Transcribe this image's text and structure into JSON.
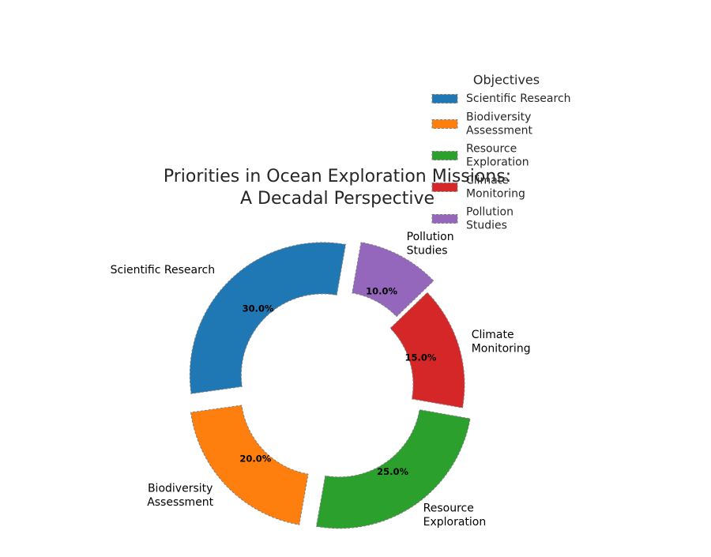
{
  "chart_data": {
    "type": "pie",
    "style": "donut",
    "title": "Priorities in Ocean Exploration Missions:\nA Decadal Perspective",
    "categories": [
      "Scientific Research",
      "Biodiversity Assessment",
      "Resource Exploration",
      "Climate Monitoring",
      "Pollution Studies"
    ],
    "slice_labels": [
      "Scientific Research",
      "Biodiversity\nAssessment",
      "Resource\nExploration",
      "Climate\nMonitoring",
      "Pollution\nStudies"
    ],
    "values": [
      30,
      20,
      25,
      15,
      10
    ],
    "percent_labels": [
      "30.0%",
      "20.0%",
      "25.0%",
      "15.0%",
      "10.0%"
    ],
    "colors": [
      "#1f77b4",
      "#ff7f0e",
      "#2ca02c",
      "#d62728",
      "#9467bd"
    ],
    "exploded": [
      true,
      true,
      true,
      false,
      true
    ],
    "edge_color": "#808080",
    "edge_style": "dashed",
    "start_angle_deg": 80,
    "legend": {
      "title": "Objectives",
      "placement": "top-right",
      "entries": [
        "Scientific Research",
        "Biodiversity\nAssessment",
        "Resource\nExploration",
        "Climate\nMonitoring",
        "Pollution\nStudies"
      ]
    }
  }
}
